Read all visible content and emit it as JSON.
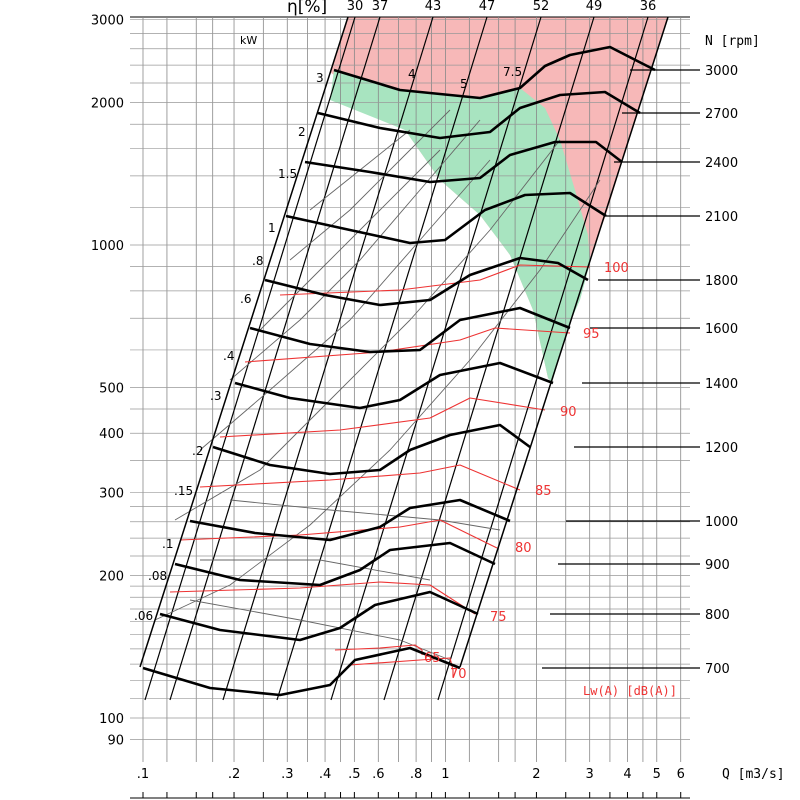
{
  "chart_data": {
    "type": "line",
    "subtype": "fan-performance-nomogram",
    "x_axis": {
      "label": "Q [m3/s]",
      "scale": "log",
      "range": [
        0.09,
        6.5
      ],
      "ticks": [
        {
          "value": 0.1,
          "label": ".1"
        },
        {
          "value": 0.2,
          "label": ".2"
        },
        {
          "value": 0.3,
          "label": ".3"
        },
        {
          "value": 0.4,
          "label": ".4"
        },
        {
          "value": 0.5,
          "label": ".5"
        },
        {
          "value": 0.6,
          "label": ".6"
        },
        {
          "value": 0.8,
          "label": ".8"
        },
        {
          "value": 1,
          "label": "1"
        },
        {
          "value": 2,
          "label": "2"
        },
        {
          "value": 3,
          "label": "3"
        },
        {
          "value": 4,
          "label": "4"
        },
        {
          "value": 5,
          "label": "5"
        },
        {
          "value": 6,
          "label": "6"
        }
      ]
    },
    "y_axis": {
      "label": "",
      "scale": "log",
      "range": [
        80,
        3000
      ],
      "ticks": [
        {
          "value": 90,
          "label": "90"
        },
        {
          "value": 100,
          "label": "100"
        },
        {
          "value": 200,
          "label": "200"
        },
        {
          "value": 300,
          "label": "300"
        },
        {
          "value": 400,
          "label": "400"
        },
        {
          "value": 500,
          "label": "500"
        },
        {
          "value": 1000,
          "label": "1000"
        },
        {
          "value": 2000,
          "label": "2000"
        },
        {
          "value": 3000,
          "label": "3000"
        }
      ]
    },
    "efficiency": {
      "label": "η[%]",
      "values": [
        "30",
        "37",
        "43",
        "47",
        "52",
        "49",
        "36"
      ]
    },
    "power": {
      "unit": "kW",
      "labels": [
        ".06",
        ".08",
        ".1",
        ".15",
        ".2",
        ".3",
        ".4",
        ".6",
        ".8",
        "1",
        "1.5",
        "2",
        "3",
        "4",
        "5",
        "7.5"
      ]
    },
    "speed": {
      "label": "N [rpm]",
      "values": [
        "3000",
        "2700",
        "2400",
        "2100",
        "1800",
        "1600",
        "1400",
        "1200",
        "1000",
        "900",
        "800",
        "700"
      ]
    },
    "sound": {
      "label": "Lw(A)  [dB(A)]",
      "values": [
        "65",
        "70",
        "75",
        "80",
        "85",
        "90",
        "95",
        "100"
      ]
    },
    "colors": {
      "green_region": "#a8e4c0",
      "red_region": "#f7b8b8",
      "sound_lines": "#ee3333",
      "curves": "#000000"
    }
  }
}
